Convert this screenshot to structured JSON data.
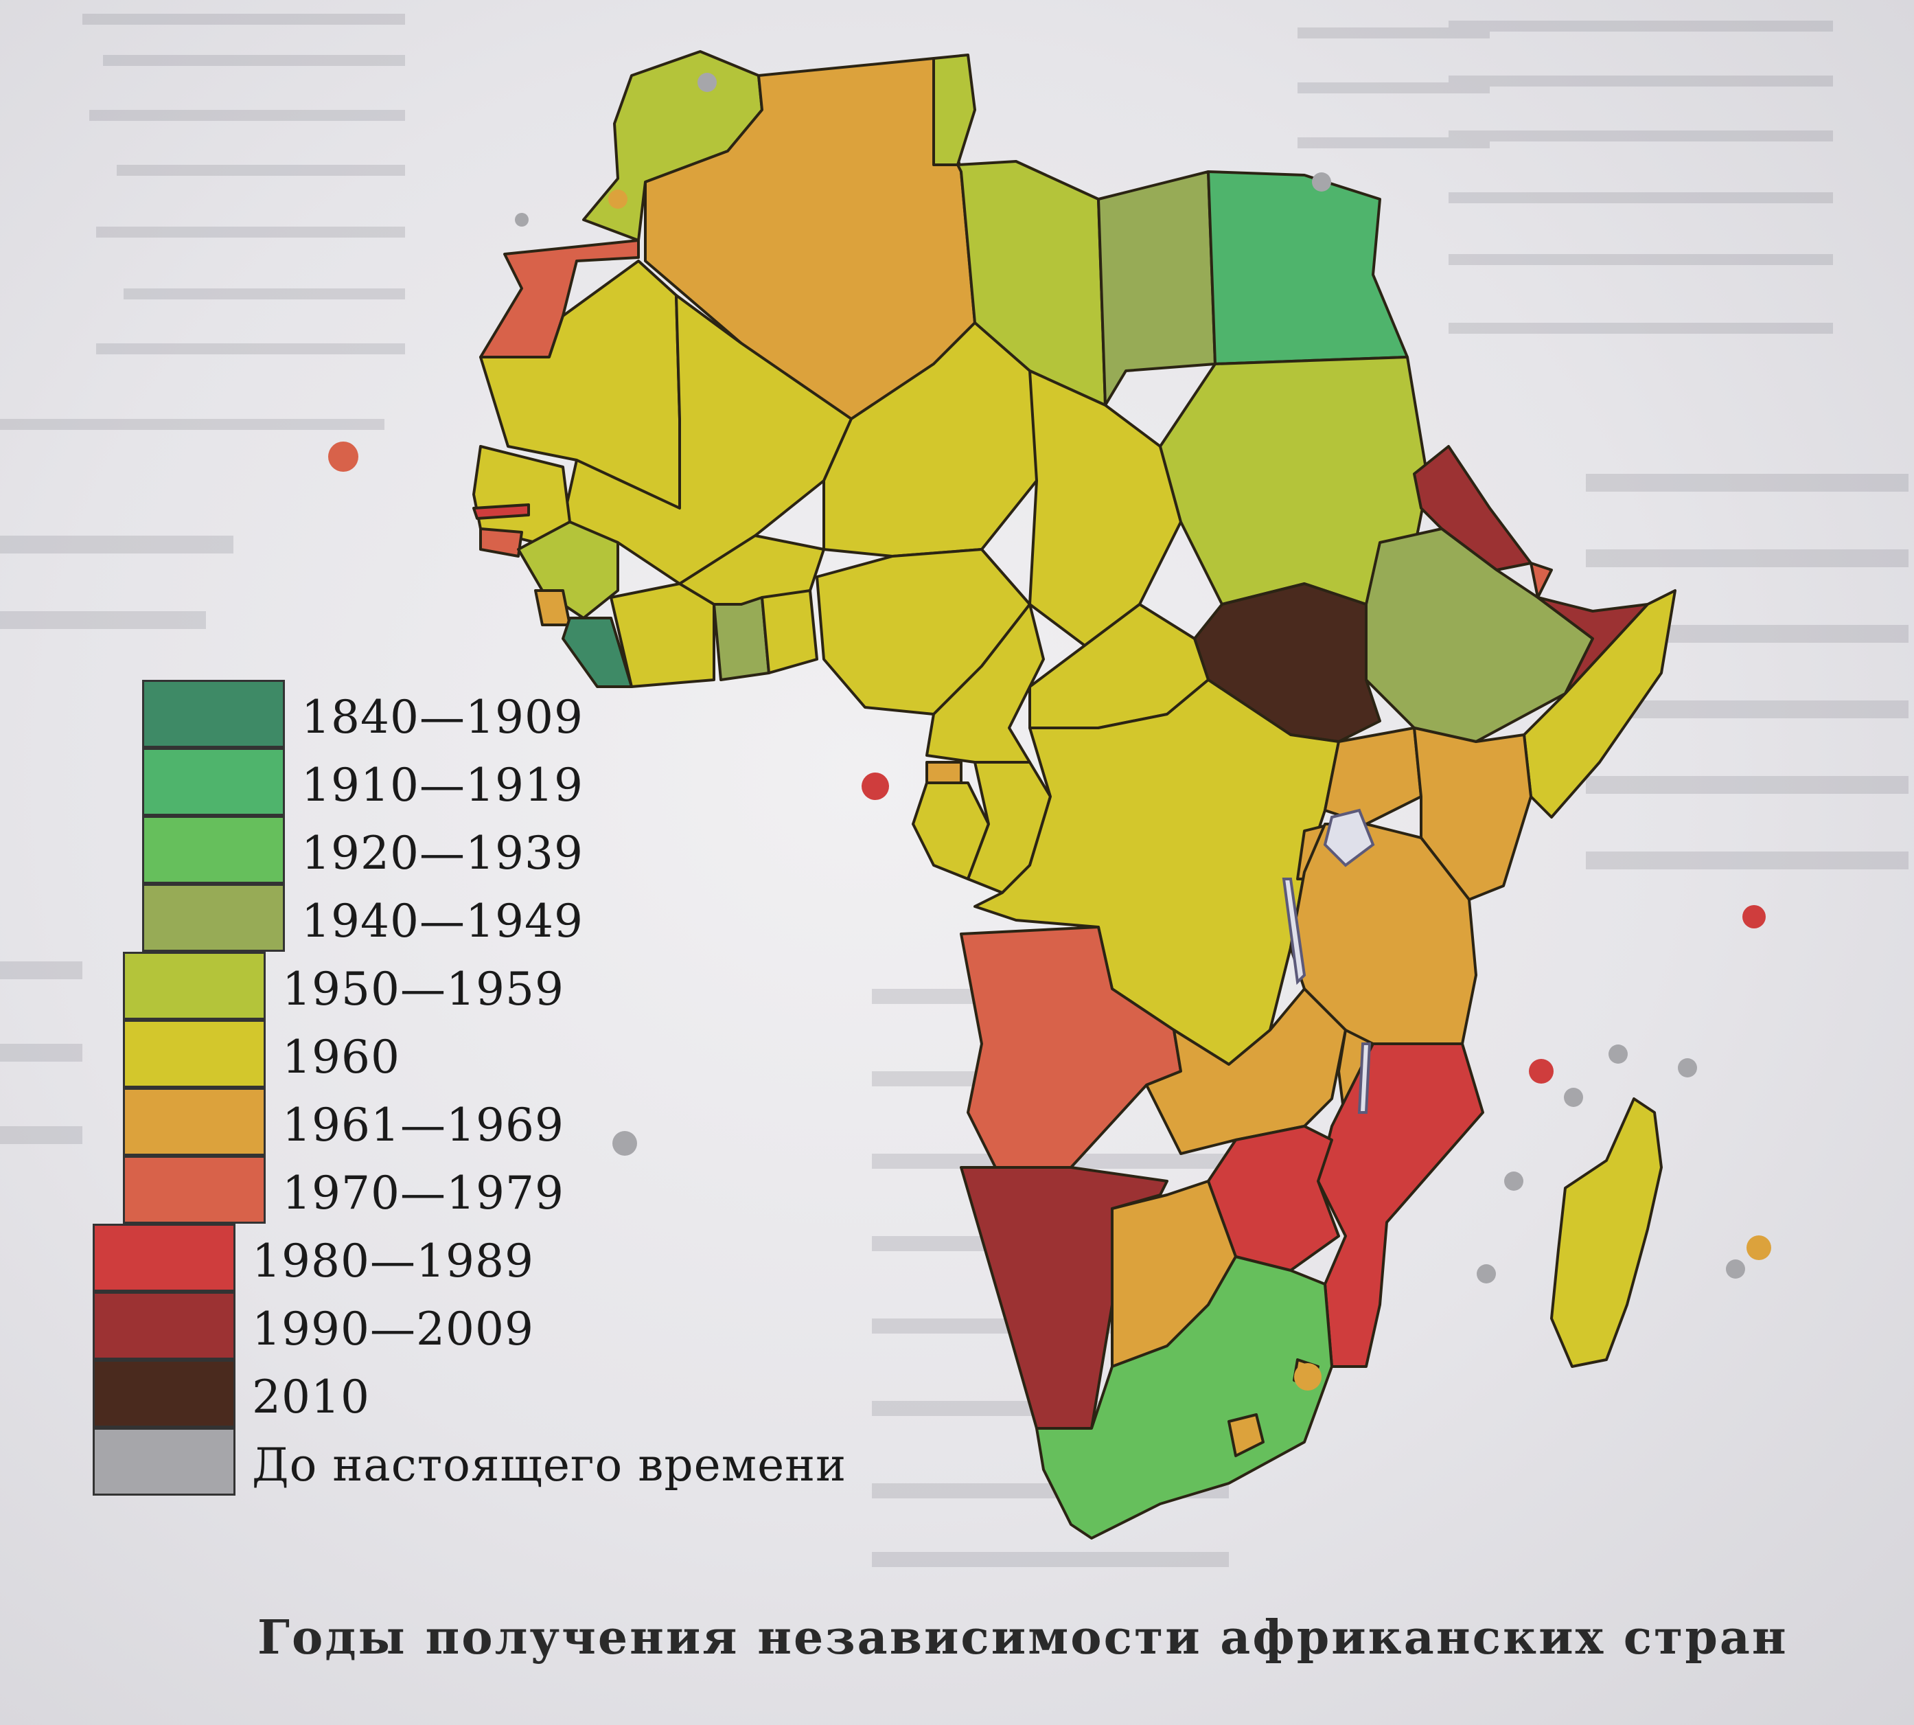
{
  "legend": {
    "items": [
      {
        "label": "1840—1909",
        "color": "#3e8a66"
      },
      {
        "label": "1910—1919",
        "color": "#4fb46c"
      },
      {
        "label": "1920—1939",
        "color": "#66bf5c"
      },
      {
        "label": "1940—1949",
        "color": "#97ab56"
      },
      {
        "label": "1950—1959",
        "color": "#b4c43a"
      },
      {
        "label": "1960",
        "color": "#d3c72c"
      },
      {
        "label": "1961—1969",
        "color": "#dca23c"
      },
      {
        "label": "1970—1979",
        "color": "#d8624a"
      },
      {
        "label": "1980—1989",
        "color": "#cf3d3d"
      },
      {
        "label": "1990—2009",
        "color": "#9c3233"
      },
      {
        "label": "2010",
        "color": "#4a2a1e"
      },
      {
        "label": "До настоящего времени",
        "color": "#a6a6aa"
      }
    ]
  },
  "caption": "Годы получения независимости африканских стран",
  "border_color": "#2b2414"
}
